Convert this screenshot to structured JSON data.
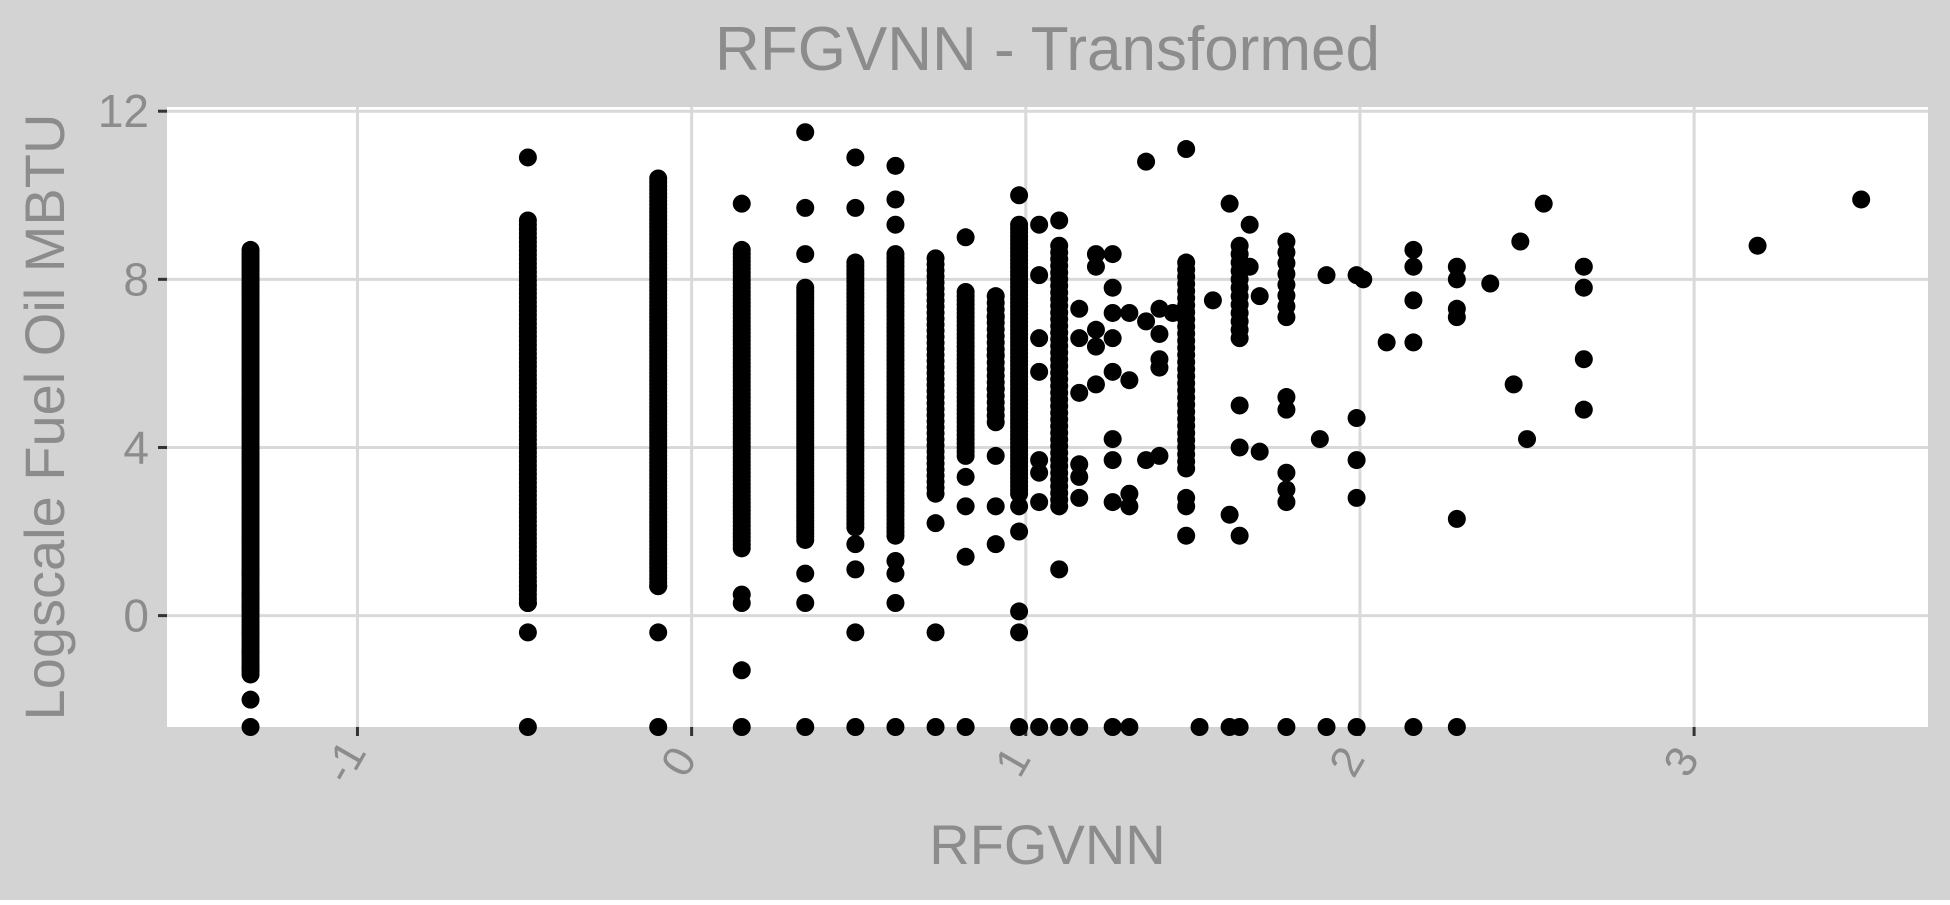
{
  "chart_data": {
    "type": "scatter",
    "title": "RFGVNN - Transformed",
    "xlabel": "RFGVNN",
    "ylabel": "Logscale Fuel Oil MBTU",
    "xlim": [
      -1.57,
      3.7
    ],
    "ylim": [
      -2.65,
      12.1
    ],
    "x_ticks": [
      -1,
      0,
      1,
      2,
      3
    ],
    "x_tick_labels": [
      "-1",
      "0",
      "1",
      "2",
      "3"
    ],
    "y_ticks": [
      0,
      4,
      8,
      12
    ],
    "y_tick_labels": [
      "0",
      "4",
      "8",
      "12"
    ],
    "grid": true,
    "legend": "none",
    "colors": {
      "panel_bg": "#d3d3d3",
      "plot_bg": "#ffffff",
      "grid": "#d9d9d9",
      "text": "#8c8c8c",
      "point": "#000000"
    },
    "stripes": [
      {
        "x": -1.32,
        "y_min": -1.4,
        "y_max": 8.7,
        "n": 140
      },
      {
        "x": -0.49,
        "y_min": 0.3,
        "y_max": 9.4,
        "n": 90
      },
      {
        "x": -0.1,
        "y_min": 0.7,
        "y_max": 10.4,
        "n": 110
      },
      {
        "x": 0.15,
        "y_min": 1.6,
        "y_max": 8.7,
        "n": 80
      },
      {
        "x": 0.34,
        "y_min": 1.8,
        "y_max": 7.8,
        "n": 80
      },
      {
        "x": 0.49,
        "y_min": 2.1,
        "y_max": 8.4,
        "n": 70
      },
      {
        "x": 0.61,
        "y_min": 1.9,
        "y_max": 8.6,
        "n": 70
      },
      {
        "x": 0.73,
        "y_min": 2.9,
        "y_max": 8.5,
        "n": 40
      },
      {
        "x": 0.82,
        "y_min": 3.8,
        "y_max": 7.7,
        "n": 40
      },
      {
        "x": 0.91,
        "y_min": 4.6,
        "y_max": 7.6,
        "n": 20
      },
      {
        "x": 0.98,
        "y_min": 2.9,
        "y_max": 9.3,
        "n": 70
      },
      {
        "x": 1.1,
        "y_min": 2.6,
        "y_max": 8.8,
        "n": 40
      },
      {
        "x": 1.48,
        "y_min": 3.5,
        "y_max": 8.4,
        "n": 30
      },
      {
        "x": 1.64,
        "y_min": 6.6,
        "y_max": 8.8,
        "n": 12
      },
      {
        "x": 1.78,
        "y_min": 7.1,
        "y_max": 8.9,
        "n": 8
      }
    ],
    "points": [
      {
        "x": -1.32,
        "y": -2.65
      },
      {
        "x": -1.32,
        "y": -2.0
      },
      {
        "x": -1.32,
        "y": -1.25
      },
      {
        "x": -1.32,
        "y": -0.85
      },
      {
        "x": -1.32,
        "y": -0.4
      },
      {
        "x": -1.32,
        "y": 0.2
      },
      {
        "x": -1.32,
        "y": 0.5
      },
      {
        "x": -1.32,
        "y": 1.0
      },
      {
        "x": -0.49,
        "y": -2.65
      },
      {
        "x": -0.49,
        "y": -0.4
      },
      {
        "x": -0.49,
        "y": 0.3
      },
      {
        "x": -0.49,
        "y": 0.7
      },
      {
        "x": -0.49,
        "y": 10.9
      },
      {
        "x": -0.1,
        "y": -0.4
      },
      {
        "x": -0.1,
        "y": -2.65
      },
      {
        "x": -0.1,
        "y": 0.7
      },
      {
        "x": 0.15,
        "y": -2.65
      },
      {
        "x": 0.15,
        "y": -1.3
      },
      {
        "x": 0.15,
        "y": 0.3
      },
      {
        "x": 0.15,
        "y": 0.5
      },
      {
        "x": 0.15,
        "y": 9.8
      },
      {
        "x": 0.34,
        "y": -2.65
      },
      {
        "x": 0.34,
        "y": 0.3
      },
      {
        "x": 0.34,
        "y": 1.0
      },
      {
        "x": 0.34,
        "y": 8.6
      },
      {
        "x": 0.34,
        "y": 9.7
      },
      {
        "x": 0.34,
        "y": 11.5
      },
      {
        "x": 0.49,
        "y": -2.65
      },
      {
        "x": 0.49,
        "y": -0.4
      },
      {
        "x": 0.49,
        "y": 1.1
      },
      {
        "x": 0.49,
        "y": 1.7
      },
      {
        "x": 0.49,
        "y": 9.7
      },
      {
        "x": 0.49,
        "y": 10.9
      },
      {
        "x": 0.61,
        "y": -2.65
      },
      {
        "x": 0.61,
        "y": 0.3
      },
      {
        "x": 0.61,
        "y": 1.0
      },
      {
        "x": 0.61,
        "y": 1.3
      },
      {
        "x": 0.61,
        "y": 9.3
      },
      {
        "x": 0.61,
        "y": 9.9
      },
      {
        "x": 0.61,
        "y": 10.7
      },
      {
        "x": 0.73,
        "y": -2.65
      },
      {
        "x": 0.73,
        "y": -0.4
      },
      {
        "x": 0.73,
        "y": 2.2
      },
      {
        "x": 0.82,
        "y": -2.65
      },
      {
        "x": 0.82,
        "y": 1.4
      },
      {
        "x": 0.82,
        "y": 2.6
      },
      {
        "x": 0.82,
        "y": 3.3
      },
      {
        "x": 0.82,
        "y": 9.0
      },
      {
        "x": 0.91,
        "y": 1.7
      },
      {
        "x": 0.91,
        "y": 2.6
      },
      {
        "x": 0.91,
        "y": 3.8
      },
      {
        "x": 0.91,
        "y": 5.4
      },
      {
        "x": 0.91,
        "y": 6.2
      },
      {
        "x": 0.91,
        "y": 7.1
      },
      {
        "x": 0.98,
        "y": -2.65
      },
      {
        "x": 0.98,
        "y": -0.4
      },
      {
        "x": 0.98,
        "y": 0.1
      },
      {
        "x": 0.98,
        "y": 2.0
      },
      {
        "x": 0.98,
        "y": 2.6
      },
      {
        "x": 0.98,
        "y": 10.0
      },
      {
        "x": 1.04,
        "y": -2.65
      },
      {
        "x": 1.04,
        "y": 2.7
      },
      {
        "x": 1.04,
        "y": 3.4
      },
      {
        "x": 1.04,
        "y": 3.7
      },
      {
        "x": 1.04,
        "y": 5.8
      },
      {
        "x": 1.04,
        "y": 6.6
      },
      {
        "x": 1.04,
        "y": 8.1
      },
      {
        "x": 1.04,
        "y": 9.3
      },
      {
        "x": 1.1,
        "y": -2.65
      },
      {
        "x": 1.1,
        "y": 1.1
      },
      {
        "x": 1.1,
        "y": 9.4
      },
      {
        "x": 1.16,
        "y": -2.65
      },
      {
        "x": 1.16,
        "y": 2.8
      },
      {
        "x": 1.16,
        "y": 3.3
      },
      {
        "x": 1.16,
        "y": 3.6
      },
      {
        "x": 1.16,
        "y": 5.3
      },
      {
        "x": 1.16,
        "y": 6.6
      },
      {
        "x": 1.16,
        "y": 7.3
      },
      {
        "x": 1.21,
        "y": 5.5
      },
      {
        "x": 1.21,
        "y": 6.4
      },
      {
        "x": 1.21,
        "y": 6.8
      },
      {
        "x": 1.21,
        "y": 8.3
      },
      {
        "x": 1.21,
        "y": 8.6
      },
      {
        "x": 1.26,
        "y": -2.65
      },
      {
        "x": 1.26,
        "y": 2.7
      },
      {
        "x": 1.26,
        "y": 3.7
      },
      {
        "x": 1.26,
        "y": 4.2
      },
      {
        "x": 1.26,
        "y": 5.8
      },
      {
        "x": 1.26,
        "y": 6.6
      },
      {
        "x": 1.26,
        "y": 7.2
      },
      {
        "x": 1.26,
        "y": 7.8
      },
      {
        "x": 1.26,
        "y": 8.6
      },
      {
        "x": 1.31,
        "y": -2.65
      },
      {
        "x": 1.31,
        "y": 2.6
      },
      {
        "x": 1.31,
        "y": 2.9
      },
      {
        "x": 1.31,
        "y": 5.6
      },
      {
        "x": 1.31,
        "y": 7.2
      },
      {
        "x": 1.36,
        "y": 3.7
      },
      {
        "x": 1.36,
        "y": 7.0
      },
      {
        "x": 1.36,
        "y": 10.8
      },
      {
        "x": 1.4,
        "y": 3.8
      },
      {
        "x": 1.4,
        "y": 5.9
      },
      {
        "x": 1.4,
        "y": 6.1
      },
      {
        "x": 1.4,
        "y": 6.7
      },
      {
        "x": 1.4,
        "y": 7.3
      },
      {
        "x": 1.44,
        "y": 7.2
      },
      {
        "x": 1.48,
        "y": 1.9
      },
      {
        "x": 1.48,
        "y": 2.6
      },
      {
        "x": 1.48,
        "y": 2.8
      },
      {
        "x": 1.48,
        "y": 11.1
      },
      {
        "x": 1.52,
        "y": -2.65
      },
      {
        "x": 1.56,
        "y": 7.5
      },
      {
        "x": 1.61,
        "y": -2.65
      },
      {
        "x": 1.61,
        "y": 2.4
      },
      {
        "x": 1.61,
        "y": 9.8
      },
      {
        "x": 1.64,
        "y": -2.65
      },
      {
        "x": 1.64,
        "y": 1.9
      },
      {
        "x": 1.64,
        "y": 4.0
      },
      {
        "x": 1.64,
        "y": 5.0
      },
      {
        "x": 1.67,
        "y": 8.3
      },
      {
        "x": 1.67,
        "y": 9.3
      },
      {
        "x": 1.7,
        "y": 3.9
      },
      {
        "x": 1.7,
        "y": 7.6
      },
      {
        "x": 1.78,
        "y": -2.65
      },
      {
        "x": 1.78,
        "y": 2.7
      },
      {
        "x": 1.78,
        "y": 3.0
      },
      {
        "x": 1.78,
        "y": 3.4
      },
      {
        "x": 1.78,
        "y": 4.9
      },
      {
        "x": 1.78,
        "y": 5.2
      },
      {
        "x": 1.88,
        "y": 4.2
      },
      {
        "x": 1.9,
        "y": -2.65
      },
      {
        "x": 1.9,
        "y": 8.1
      },
      {
        "x": 1.99,
        "y": -2.65
      },
      {
        "x": 1.99,
        "y": 2.8
      },
      {
        "x": 1.99,
        "y": 3.7
      },
      {
        "x": 1.99,
        "y": 4.7
      },
      {
        "x": 1.99,
        "y": 8.1
      },
      {
        "x": 2.01,
        "y": 8.0
      },
      {
        "x": 2.08,
        "y": 6.5
      },
      {
        "x": 2.16,
        "y": -2.65
      },
      {
        "x": 2.16,
        "y": 6.5
      },
      {
        "x": 2.16,
        "y": 7.5
      },
      {
        "x": 2.16,
        "y": 8.3
      },
      {
        "x": 2.16,
        "y": 8.7
      },
      {
        "x": 2.29,
        "y": -2.65
      },
      {
        "x": 2.29,
        "y": 2.3
      },
      {
        "x": 2.29,
        "y": 7.1
      },
      {
        "x": 2.29,
        "y": 7.3
      },
      {
        "x": 2.29,
        "y": 8.0
      },
      {
        "x": 2.29,
        "y": 8.3
      },
      {
        "x": 2.39,
        "y": 7.9
      },
      {
        "x": 2.46,
        "y": 5.5
      },
      {
        "x": 2.48,
        "y": 8.9
      },
      {
        "x": 2.5,
        "y": 4.2
      },
      {
        "x": 2.55,
        "y": 9.8
      },
      {
        "x": 2.67,
        "y": 4.9
      },
      {
        "x": 2.67,
        "y": 6.1
      },
      {
        "x": 2.67,
        "y": 7.8
      },
      {
        "x": 2.67,
        "y": 8.3
      },
      {
        "x": 3.19,
        "y": 8.8
      },
      {
        "x": 3.5,
        "y": 9.9
      }
    ]
  }
}
